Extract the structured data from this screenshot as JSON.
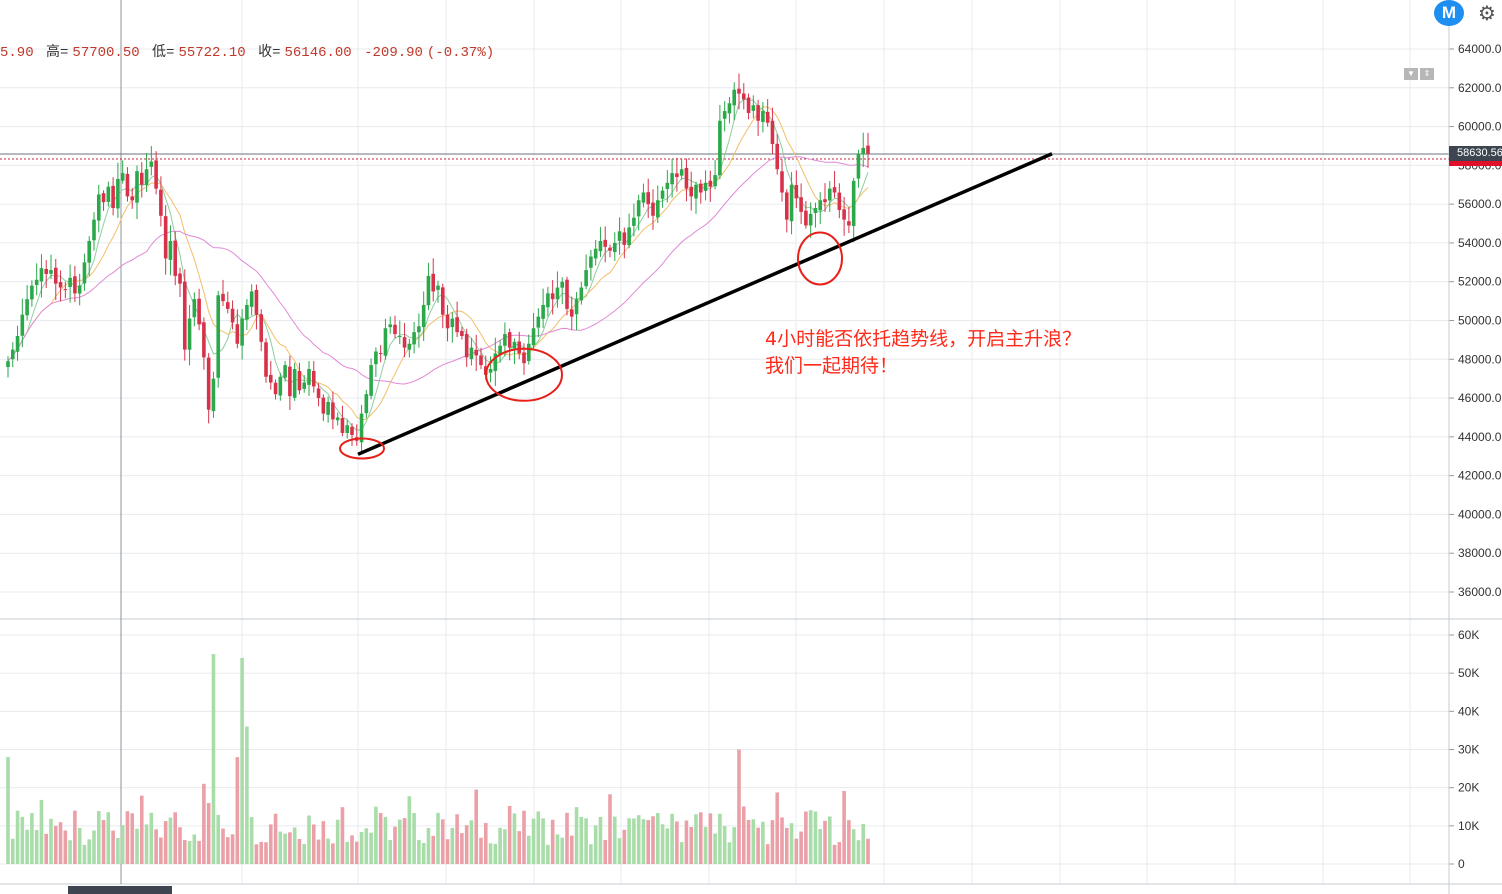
{
  "ohlc": {
    "open_frag": "5.90",
    "high_label": "高=",
    "high": "57700.50",
    "low_label": "低=",
    "low": "55722.10",
    "close_label": "收=",
    "close": "56146.00",
    "change": "-209.90",
    "change_pct": "(-0.37%)"
  },
  "annotation": {
    "line1": "4小时能否依托趋势线，开启主升浪？",
    "line2": "我们一起期待！"
  },
  "price_badge": "58630.56",
  "logo_letter": "M",
  "icons": [
    "logo-icon",
    "gear-icon",
    "collapse-icon",
    "scroll-icon"
  ],
  "colors": {
    "up": "#2aa84a",
    "down": "#d6334b",
    "vol_up": "#a8dca8",
    "vol_down": "#eba0a8",
    "ma_fast": "#f2bf6b",
    "ma_slow": "#e08ad6",
    "ma_mid": "#8ccf9e",
    "annotation": "#ff2a1a",
    "trendline": "#000000"
  },
  "chart_data": {
    "type": "candlestick",
    "price_axis": {
      "ylim": [
        35000,
        65000
      ],
      "ticks": [
        "64000.0",
        "62000.0",
        "60000.0",
        "58000.0",
        "56000.0",
        "54000.0",
        "52000.0",
        "50000.0",
        "48000.0",
        "46000.0",
        "44000.0",
        "42000.0",
        "40000.0",
        "38000.0",
        "36000.0"
      ]
    },
    "volume_axis": {
      "ylim": [
        0,
        60000
      ],
      "ticks": [
        "60K",
        "50K",
        "40K",
        "30K",
        "20K",
        "10K",
        "0"
      ]
    },
    "closes": [
      47900,
      48500,
      49200,
      50300,
      51100,
      51800,
      52100,
      52700,
      52400,
      52600,
      51900,
      51700,
      51600,
      52200,
      51400,
      51800,
      53000,
      54100,
      55200,
      56500,
      56100,
      56900,
      55800,
      57300,
      57600,
      56400,
      56200,
      57700,
      57000,
      57800,
      58200,
      56800,
      55400,
      53200,
      54100,
      52300,
      51900,
      48500,
      50100,
      51100,
      49800,
      48100,
      45400,
      47000,
      51300,
      51000,
      50600,
      49900,
      48800,
      50100,
      50800,
      51500,
      50300,
      48900,
      47100,
      46800,
      46200,
      47100,
      47700,
      46100,
      47500,
      46400,
      46800,
      47500,
      46600,
      46000,
      45200,
      45800,
      44900,
      45000,
      44200,
      44600,
      44100,
      43800,
      45200,
      46200,
      47700,
      48400,
      48300,
      49600,
      49800,
      49300,
      49200,
      48600,
      48800,
      49400,
      49700,
      50800,
      52300,
      51500,
      51800,
      50300,
      49600,
      50100,
      49400,
      49200,
      48100,
      48600,
      48200,
      47700,
      47200,
      47500,
      48300,
      48700,
      49300,
      48600,
      48900,
      48300,
      47800,
      48800,
      49600,
      50200,
      50800,
      51400,
      51100,
      51700,
      52000,
      50600,
      50200,
      51100,
      51700,
      52600,
      53300,
      53700,
      54100,
      53800,
      53600,
      54000,
      54600,
      53900,
      54800,
      55300,
      56200,
      56600,
      56000,
      55400,
      56200,
      56700,
      57100,
      57600,
      57400,
      57800,
      56800,
      56400,
      57000,
      56600,
      57100,
      56900,
      57500,
      60300,
      60800,
      61200,
      61900,
      61700,
      61400,
      60700,
      61100,
      60300,
      60800,
      60200,
      59100,
      57800,
      56600,
      55200,
      57000,
      56300,
      55600,
      54900,
      55500,
      55800,
      56200,
      56100,
      56800,
      56600,
      55700,
      55200,
      54900,
      57200,
      58600,
      58900,
      58600
    ],
    "trendline": {
      "from": [
        43100
      ],
      "to": [
        58600
      ]
    },
    "highlighted_lows": [
      43400,
      47200,
      53200
    ]
  }
}
